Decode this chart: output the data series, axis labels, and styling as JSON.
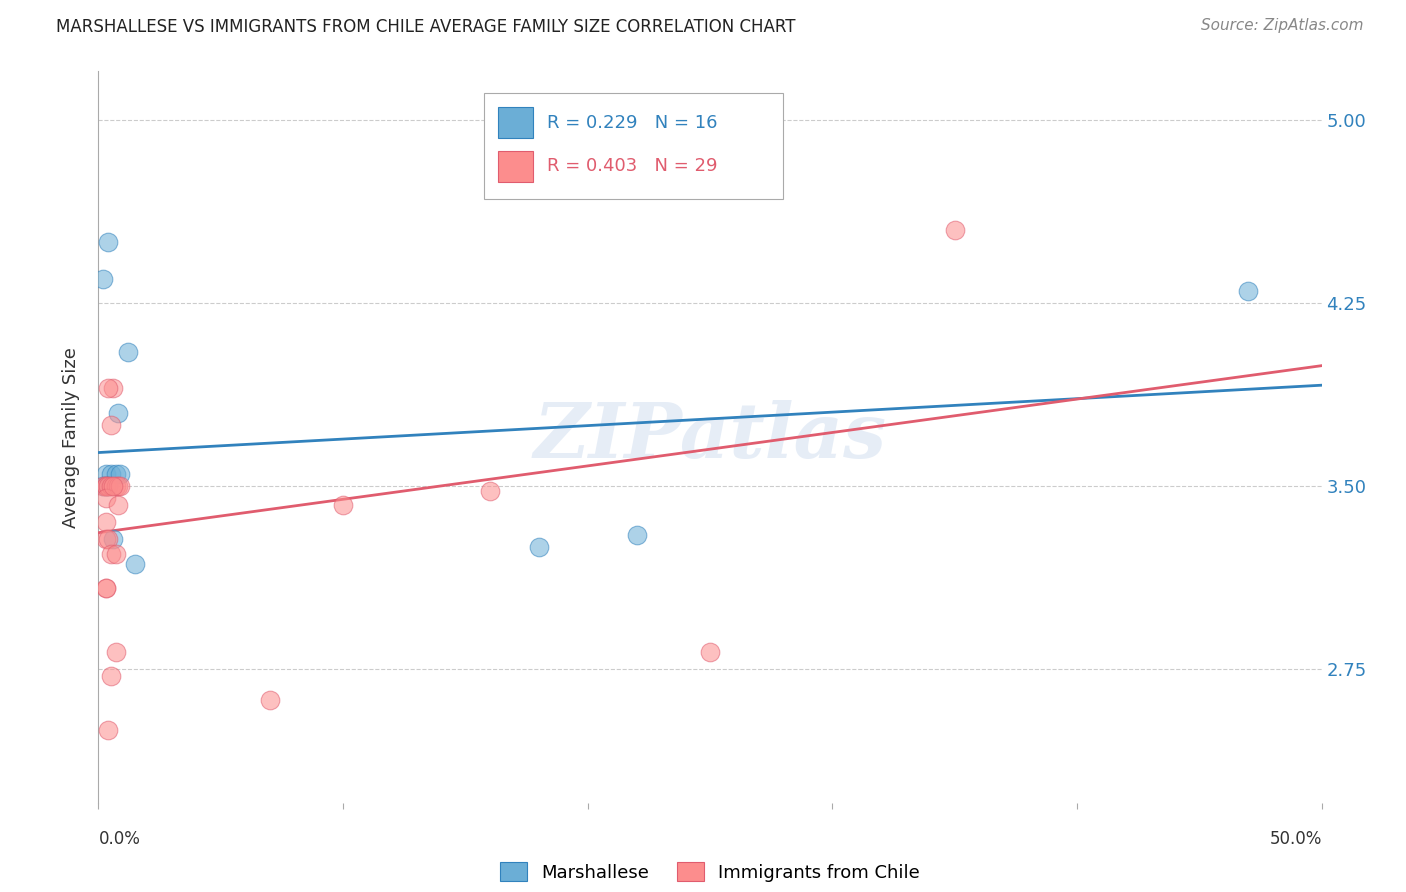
{
  "title": "MARSHALLESE VS IMMIGRANTS FROM CHILE AVERAGE FAMILY SIZE CORRELATION CHART",
  "source": "Source: ZipAtlas.com",
  "ylabel": "Average Family Size",
  "yticks": [
    2.75,
    3.5,
    4.25,
    5.0
  ],
  "xlim": [
    0.0,
    0.5
  ],
  "ylim": [
    2.2,
    5.2
  ],
  "blue_R": "0.229",
  "blue_N": "16",
  "pink_R": "0.403",
  "pink_N": "29",
  "blue_label": "Marshallese",
  "pink_label": "Immigrants from Chile",
  "blue_color": "#6baed6",
  "pink_color": "#fc8d8d",
  "blue_line_color": "#3182bd",
  "pink_line_color": "#e05c6e",
  "blue_scatter_x": [
    0.002,
    0.004,
    0.008,
    0.003,
    0.005,
    0.007,
    0.009,
    0.012,
    0.002,
    0.003,
    0.004,
    0.006,
    0.015,
    0.18,
    0.47,
    0.22
  ],
  "blue_scatter_y": [
    4.35,
    4.5,
    3.8,
    3.55,
    3.55,
    3.55,
    3.55,
    4.05,
    3.5,
    3.5,
    3.5,
    3.28,
    3.18,
    3.25,
    4.3,
    3.3
  ],
  "pink_scatter_x": [
    0.002,
    0.003,
    0.003,
    0.004,
    0.005,
    0.007,
    0.008,
    0.009,
    0.003,
    0.003,
    0.005,
    0.006,
    0.004,
    0.006,
    0.008,
    0.003,
    0.004,
    0.005,
    0.007,
    0.003,
    0.003,
    0.005,
    0.007,
    0.004,
    0.1,
    0.16,
    0.25,
    0.07,
    0.35
  ],
  "pink_scatter_y": [
    3.5,
    3.5,
    3.5,
    3.5,
    3.5,
    3.5,
    3.5,
    3.5,
    3.45,
    3.35,
    3.75,
    3.9,
    3.9,
    3.5,
    3.42,
    3.28,
    3.28,
    3.22,
    3.22,
    3.08,
    3.08,
    2.72,
    2.82,
    2.5,
    3.42,
    3.48,
    2.82,
    2.62,
    4.55
  ],
  "watermark": "ZIPatlas",
  "background_color": "#ffffff",
  "grid_color": "#cccccc"
}
